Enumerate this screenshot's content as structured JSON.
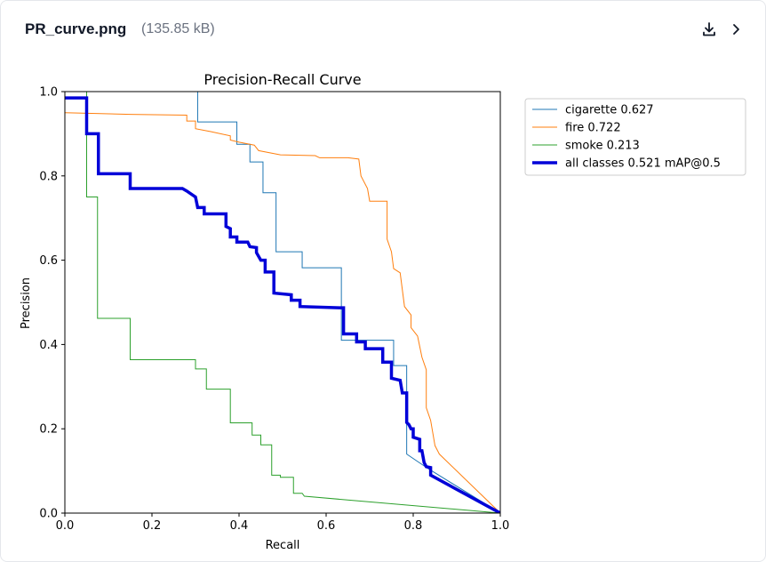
{
  "header": {
    "filename": "PR_curve.png",
    "filesize": "(135.85 kB)",
    "download_icon": "download-icon",
    "next_icon": "chevron-right-icon"
  },
  "chart_data": {
    "type": "line",
    "title": "Precision-Recall Curve",
    "xlabel": "Recall",
    "ylabel": "Precision",
    "xlim": [
      0.0,
      1.0
    ],
    "ylim": [
      0.0,
      1.0
    ],
    "xticks": [
      "0.0",
      "0.2",
      "0.4",
      "0.6",
      "0.8",
      "1.0"
    ],
    "yticks": [
      "0.0",
      "0.2",
      "0.4",
      "0.6",
      "0.8",
      "1.0"
    ],
    "grid": false,
    "legend_position": "outside-right-top",
    "series": [
      {
        "name": "cigarette 0.627",
        "color": "#1f77b4",
        "width": 1,
        "points": [
          [
            0,
            1.0
          ],
          [
            0.305,
            1.0
          ],
          [
            0.305,
            0.928
          ],
          [
            0.395,
            0.928
          ],
          [
            0.395,
            0.875
          ],
          [
            0.425,
            0.875
          ],
          [
            0.425,
            0.833
          ],
          [
            0.455,
            0.833
          ],
          [
            0.455,
            0.76
          ],
          [
            0.485,
            0.76
          ],
          [
            0.485,
            0.62
          ],
          [
            0.545,
            0.62
          ],
          [
            0.545,
            0.582
          ],
          [
            0.635,
            0.582
          ],
          [
            0.635,
            0.41
          ],
          [
            0.755,
            0.41
          ],
          [
            0.755,
            0.35
          ],
          [
            0.785,
            0.35
          ],
          [
            0.785,
            0.14
          ],
          [
            0.835,
            0.105
          ],
          [
            1.0,
            0.0
          ]
        ]
      },
      {
        "name": "fire 0.722",
        "color": "#ff7f0e",
        "width": 1,
        "points": [
          [
            0,
            0.95
          ],
          [
            0.15,
            0.946
          ],
          [
            0.28,
            0.944
          ],
          [
            0.28,
            0.93
          ],
          [
            0.3,
            0.93
          ],
          [
            0.3,
            0.912
          ],
          [
            0.335,
            0.905
          ],
          [
            0.38,
            0.895
          ],
          [
            0.38,
            0.885
          ],
          [
            0.4,
            0.88
          ],
          [
            0.435,
            0.873
          ],
          [
            0.445,
            0.86
          ],
          [
            0.495,
            0.85
          ],
          [
            0.575,
            0.848
          ],
          [
            0.585,
            0.843
          ],
          [
            0.65,
            0.843
          ],
          [
            0.675,
            0.84
          ],
          [
            0.68,
            0.8
          ],
          [
            0.695,
            0.77
          ],
          [
            0.7,
            0.74
          ],
          [
            0.74,
            0.74
          ],
          [
            0.74,
            0.65
          ],
          [
            0.75,
            0.62
          ],
          [
            0.755,
            0.58
          ],
          [
            0.77,
            0.57
          ],
          [
            0.78,
            0.49
          ],
          [
            0.795,
            0.47
          ],
          [
            0.795,
            0.44
          ],
          [
            0.81,
            0.42
          ],
          [
            0.82,
            0.37
          ],
          [
            0.83,
            0.34
          ],
          [
            0.83,
            0.25
          ],
          [
            0.84,
            0.22
          ],
          [
            0.85,
            0.16
          ],
          [
            0.86,
            0.14
          ],
          [
            1.0,
            0.0
          ]
        ]
      },
      {
        "name": "smoke 0.213",
        "color": "#2ca02c",
        "width": 1,
        "points": [
          [
            0,
            1.0
          ],
          [
            0.05,
            1.0
          ],
          [
            0.05,
            0.75
          ],
          [
            0.075,
            0.75
          ],
          [
            0.075,
            0.462
          ],
          [
            0.15,
            0.462
          ],
          [
            0.15,
            0.364
          ],
          [
            0.3,
            0.364
          ],
          [
            0.3,
            0.342
          ],
          [
            0.325,
            0.342
          ],
          [
            0.325,
            0.294
          ],
          [
            0.38,
            0.294
          ],
          [
            0.38,
            0.214
          ],
          [
            0.43,
            0.214
          ],
          [
            0.43,
            0.185
          ],
          [
            0.45,
            0.185
          ],
          [
            0.45,
            0.162
          ],
          [
            0.475,
            0.162
          ],
          [
            0.475,
            0.09
          ],
          [
            0.495,
            0.09
          ],
          [
            0.495,
            0.085
          ],
          [
            0.525,
            0.085
          ],
          [
            0.525,
            0.047
          ],
          [
            0.545,
            0.047
          ],
          [
            0.55,
            0.04
          ],
          [
            1.0,
            0.0
          ]
        ]
      },
      {
        "name": "all classes 0.521 mAP@0.5",
        "color": "#0000d8",
        "width": 3.5,
        "points": [
          [
            0,
            0.985
          ],
          [
            0.05,
            0.985
          ],
          [
            0.05,
            0.9
          ],
          [
            0.077,
            0.9
          ],
          [
            0.077,
            0.805
          ],
          [
            0.15,
            0.805
          ],
          [
            0.15,
            0.77
          ],
          [
            0.27,
            0.77
          ],
          [
            0.28,
            0.764
          ],
          [
            0.3,
            0.75
          ],
          [
            0.305,
            0.725
          ],
          [
            0.32,
            0.725
          ],
          [
            0.32,
            0.71
          ],
          [
            0.37,
            0.71
          ],
          [
            0.37,
            0.68
          ],
          [
            0.38,
            0.675
          ],
          [
            0.38,
            0.655
          ],
          [
            0.395,
            0.655
          ],
          [
            0.395,
            0.643
          ],
          [
            0.42,
            0.643
          ],
          [
            0.425,
            0.632
          ],
          [
            0.44,
            0.63
          ],
          [
            0.44,
            0.618
          ],
          [
            0.45,
            0.6
          ],
          [
            0.46,
            0.6
          ],
          [
            0.46,
            0.572
          ],
          [
            0.48,
            0.572
          ],
          [
            0.48,
            0.522
          ],
          [
            0.52,
            0.518
          ],
          [
            0.52,
            0.505
          ],
          [
            0.54,
            0.505
          ],
          [
            0.54,
            0.49
          ],
          [
            0.63,
            0.487
          ],
          [
            0.64,
            0.487
          ],
          [
            0.64,
            0.425
          ],
          [
            0.67,
            0.425
          ],
          [
            0.67,
            0.406
          ],
          [
            0.69,
            0.406
          ],
          [
            0.69,
            0.39
          ],
          [
            0.73,
            0.39
          ],
          [
            0.73,
            0.358
          ],
          [
            0.75,
            0.358
          ],
          [
            0.75,
            0.32
          ],
          [
            0.77,
            0.315
          ],
          [
            0.775,
            0.285
          ],
          [
            0.785,
            0.285
          ],
          [
            0.785,
            0.215
          ],
          [
            0.79,
            0.21
          ],
          [
            0.795,
            0.2
          ],
          [
            0.8,
            0.2
          ],
          [
            0.8,
            0.18
          ],
          [
            0.815,
            0.175
          ],
          [
            0.815,
            0.148
          ],
          [
            0.82,
            0.148
          ],
          [
            0.825,
            0.12
          ],
          [
            0.83,
            0.11
          ],
          [
            0.84,
            0.108
          ],
          [
            0.84,
            0.09
          ],
          [
            1.0,
            0.0
          ]
        ]
      }
    ]
  }
}
